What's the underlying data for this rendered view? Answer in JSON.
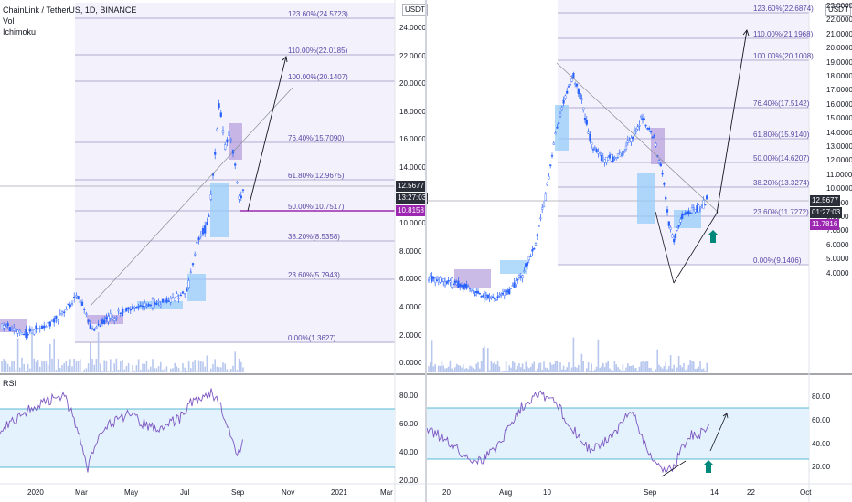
{
  "header": {
    "symbol_line": "ChainLink / TetherUS, 1D, BINANCE",
    "vol_label": "Vol",
    "ichimoku_label": "Ichimoku",
    "rsi_label": "RSI",
    "currency": "USDT"
  },
  "left": {
    "price_axis": [
      "24.0000",
      "22.0000",
      "20.0000",
      "18.0000",
      "16.0000",
      "14.0000",
      "12.0000",
      "10.0000",
      "8.0000",
      "6.0000",
      "4.0000",
      "2.0000",
      "0.0000"
    ],
    "fib_labels": [
      "123.60%(24.5723)",
      "110.00%(22.0185)",
      "100.00%(20.1407)",
      "76.40%(15.7090)",
      "61.80%(12.9675)",
      "50.00%(10.7517)",
      "38.20%(8.5358)",
      "23.60%(5.7943)",
      "0.00%(1.3627)"
    ],
    "price_badge": "12.5677",
    "countdown_badge": "13:27:03",
    "level_badge": "10.8158",
    "rsi_axis": [
      "80.00",
      "60.00",
      "40.00",
      "20.00"
    ],
    "time_axis": [
      "2020",
      "Mar",
      "May",
      "Jul",
      "Sep",
      "Nov",
      "2021",
      "Mar"
    ]
  },
  "right": {
    "price_axis": [
      "23.0000",
      "22.0000",
      "21.0000",
      "20.0000",
      "19.0000",
      "18.0000",
      "17.0000",
      "16.0000",
      "15.0000",
      "14.0000",
      "13.0000",
      "12.0000",
      "11.0000",
      "10.0000",
      "9.0000",
      "8.0000",
      "7.0000",
      "6.0000",
      "5.0000",
      "4.0000"
    ],
    "fib_labels": [
      "123.60%(22.6874)",
      "110.00%(21.1968)",
      "100.00%(20.1008)",
      "76.40%(17.5142)",
      "61.80%(15.9140)",
      "50.00%(14.6207)",
      "38.20%(13.3274)",
      "23.60%(11.7272)",
      "0.00%(9.1406)"
    ],
    "price_badge": "12.5677",
    "countdown_badge": "01:27:03",
    "level_badge": "11.7816",
    "rsi_axis": [
      "80.00",
      "60.00",
      "40.00",
      "20.00"
    ],
    "time_axis": [
      "20",
      "Aug",
      "10",
      "Sep",
      "14",
      "22",
      "Oct"
    ]
  },
  "colors": {
    "fib_text": "#5b48a8",
    "level_line": "#9c27b0",
    "price_badge": "#2a2e39",
    "level_badge": "#9c27b0",
    "candle": "#2962ff",
    "cloud_up": "#90caf9",
    "cloud_down": "#b39ddb",
    "rsi_line": "#7e57c2",
    "rsi_band": "#e3f2fd",
    "rsi_bound": "#26a4c4",
    "arrow_up": "#00897b"
  }
}
